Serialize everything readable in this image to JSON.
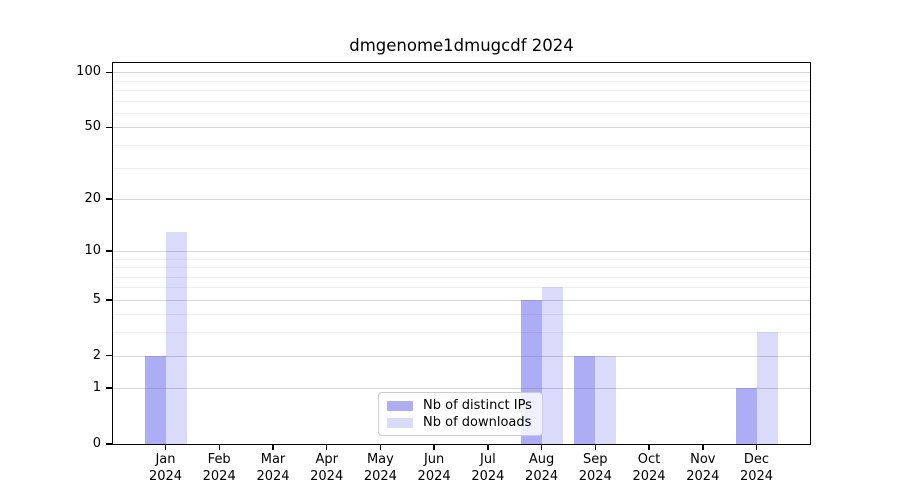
{
  "title": "dmgenome1dmugcdf 2024",
  "legend": {
    "items": [
      {
        "label": "Nb of distinct IPs",
        "color": "rgba(80,80,235,0.47)"
      },
      {
        "label": "Nb of downloads",
        "color": "rgba(80,80,235,0.21)"
      }
    ]
  },
  "chart_data": {
    "type": "bar",
    "title": "dmgenome1dmugcdf 2024",
    "categories": [
      "Jan",
      "Feb",
      "Mar",
      "Apr",
      "May",
      "Jun",
      "Jul",
      "Aug",
      "Sep",
      "Oct",
      "Nov",
      "Dec"
    ],
    "category_year": "2024",
    "series": [
      {
        "name": "Nb of distinct IPs",
        "color": "rgba(80,80,235,0.47)",
        "values": [
          2,
          0,
          0,
          0,
          0,
          0,
          0,
          5,
          2,
          0,
          0,
          1
        ]
      },
      {
        "name": "Nb of downloads",
        "color": "rgba(80,80,235,0.21)",
        "values": [
          13,
          0,
          0,
          0,
          0,
          0,
          0,
          6,
          2,
          0,
          0,
          3
        ]
      }
    ],
    "xlabel": "",
    "ylabel": "",
    "y_axis": {
      "scale": "log1p",
      "ticks": [
        0,
        1,
        2,
        5,
        10,
        20,
        50,
        100
      ],
      "minor_ticks": [
        3,
        4,
        6,
        7,
        8,
        9,
        30,
        40,
        60,
        70,
        80,
        90
      ],
      "max": 112.5
    },
    "grid": true,
    "legend_position": "lower center inside"
  }
}
